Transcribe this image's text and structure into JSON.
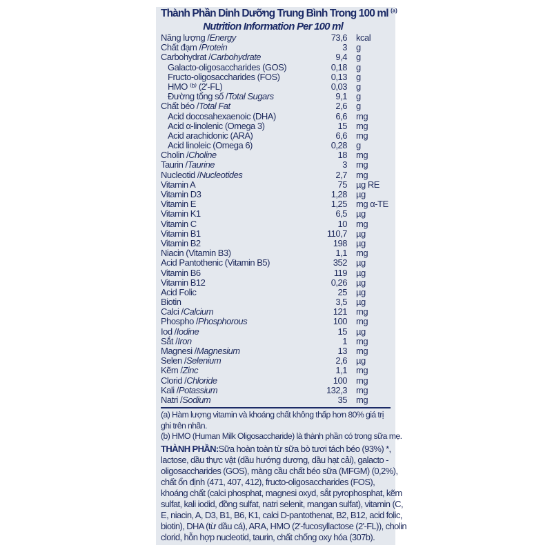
{
  "header": {
    "title_vi": "Thành Phần Dinh Dưỡng Trung Bình Trong 100 ml",
    "title_note": "(a)",
    "title_en": "Nutrition Information Per 100 ml"
  },
  "rows": [
    {
      "vi": "Năng lượng / ",
      "en": "Energy",
      "value": "73,6",
      "unit": "kcal",
      "sub": false
    },
    {
      "vi": "Chất đạm / ",
      "en": "Protein",
      "value": "3",
      "unit": "g",
      "sub": false
    },
    {
      "vi": "Carbohydrat / ",
      "en": "Carbohydrate",
      "value": "9,4",
      "unit": "g",
      "sub": false
    },
    {
      "vi": "Galacto-oligosaccharides (GOS)",
      "en": "",
      "value": "0,18",
      "unit": "g",
      "sub": true
    },
    {
      "vi": "Fructo-oligosaccharides (FOS)",
      "en": "",
      "value": "0,13",
      "unit": "g",
      "sub": true
    },
    {
      "vi": "HMO ⁽ᵇ⁾ (2'-FL)",
      "en": "",
      "value": "0,03",
      "unit": "g",
      "sub": true
    },
    {
      "vi": "Đường tổng số / ",
      "en": "Total Sugars",
      "value": "9,1",
      "unit": "g",
      "sub": true
    },
    {
      "vi": "Chất béo / ",
      "en": "Total Fat",
      "value": "2,6",
      "unit": "g",
      "sub": false
    },
    {
      "vi": "Acid docosahexaenoic (DHA)",
      "en": "",
      "value": "6,6",
      "unit": "mg",
      "sub": true
    },
    {
      "vi": "Acid α-linolenic (Omega 3)",
      "en": "",
      "value": "15",
      "unit": "mg",
      "sub": true
    },
    {
      "vi": "Acid arachidonic (ARA)",
      "en": "",
      "value": "6,6",
      "unit": "mg",
      "sub": true
    },
    {
      "vi": "Acid linoleic (Omega 6)",
      "en": "",
      "value": "0,28",
      "unit": "g",
      "sub": true
    },
    {
      "vi": "Cholin / ",
      "en": "Choline",
      "value": "18",
      "unit": "mg",
      "sub": false
    },
    {
      "vi": "Taurin / ",
      "en": "Taurine",
      "value": "3",
      "unit": "mg",
      "sub": false
    },
    {
      "vi": "Nucleotid / ",
      "en": "Nucleotides",
      "value": "2,7",
      "unit": "mg",
      "sub": false
    },
    {
      "vi": "Vitamin A",
      "en": "",
      "value": "75",
      "unit": "µg RE",
      "sub": false
    },
    {
      "vi": "Vitamin D3",
      "en": "",
      "value": "1,28",
      "unit": "µg",
      "sub": false
    },
    {
      "vi": "Vitamin E",
      "en": "",
      "value": "1,25",
      "unit": "mg α-TE",
      "sub": false
    },
    {
      "vi": "Vitamin K1",
      "en": "",
      "value": "6,5",
      "unit": "µg",
      "sub": false
    },
    {
      "vi": "Vitamin C",
      "en": "",
      "value": "10",
      "unit": "mg",
      "sub": false
    },
    {
      "vi": "Vitamin B1",
      "en": "",
      "value": "110,7",
      "unit": "µg",
      "sub": false
    },
    {
      "vi": "Vitamin B2",
      "en": "",
      "value": "198",
      "unit": "µg",
      "sub": false
    },
    {
      "vi": "Niacin (Vitamin B3)",
      "en": "",
      "value": "1,1",
      "unit": "mg",
      "sub": false
    },
    {
      "vi": "Acid Pantothenic (Vitamin B5)",
      "en": "",
      "value": "352",
      "unit": "µg",
      "sub": false
    },
    {
      "vi": "Vitamin B6",
      "en": "",
      "value": "119",
      "unit": "µg",
      "sub": false
    },
    {
      "vi": "Vitamin B12",
      "en": "",
      "value": "0,26",
      "unit": "µg",
      "sub": false
    },
    {
      "vi": "Acid Folic",
      "en": "",
      "value": "25",
      "unit": "µg",
      "sub": false
    },
    {
      "vi": "Biotin",
      "en": "",
      "value": "3,5",
      "unit": "µg",
      "sub": false
    },
    {
      "vi": "Calci / ",
      "en": "Calcium",
      "value": "121",
      "unit": "mg",
      "sub": false
    },
    {
      "vi": "Phospho / ",
      "en": "Phosphorous",
      "value": "100",
      "unit": "mg",
      "sub": false
    },
    {
      "vi": "Iod / ",
      "en": "Iodine",
      "value": "15",
      "unit": "µg",
      "sub": false
    },
    {
      "vi": "Sắt / ",
      "en": "Iron",
      "value": "1",
      "unit": "mg",
      "sub": false
    },
    {
      "vi": "Magnesi / ",
      "en": "Magnesium",
      "value": "13",
      "unit": "mg",
      "sub": false
    },
    {
      "vi": "Selen / ",
      "en": "Selenium",
      "value": "2,6",
      "unit": "µg",
      "sub": false
    },
    {
      "vi": "Kẽm / ",
      "en": "Zinc",
      "value": "1,1",
      "unit": "mg",
      "sub": false
    },
    {
      "vi": "Clorid / ",
      "en": "Chloride",
      "value": "100",
      "unit": "mg",
      "sub": false
    },
    {
      "vi": "Kali / ",
      "en": "Potassium",
      "value": "132,3",
      "unit": "mg",
      "sub": false
    },
    {
      "vi": "Natri / ",
      "en": "Sodium",
      "value": "35",
      "unit": "mg",
      "sub": false
    }
  ],
  "notes": [
    "(a) Hàm lượng vitamin và khoáng chất không thấp hơn 80% giá trị",
    "ghi trên nhãn.",
    "(b) HMO (Human Milk Oligosaccharide) là thành phần có trong sữa mẹ."
  ],
  "ingredients": {
    "label": "THÀNH PHẦN:",
    "lines": [
      " Sữa hoàn toàn từ sữa bò tươi tách béo (93%) *,",
      "lactose, dầu thực vật (dầu hướng dương, dầu hạt cải), galacto -",
      "oligosaccharides (GOS), màng cầu chất béo sữa (MFGM) (0,2%),",
      "chất ổn định (471, 407, 412), fructo-oligosaccharides (FOS),",
      "khoáng chất (calci phosphat, magnesi oxyd, sắt pyrophosphat, kẽm",
      "sulfat, kali iodid, đồng sulfat, natri selenit, mangan sulfat), vitamin (C,",
      "E, niacin, A, D3, B1, B6, K1, calci D-pantothenat, B2, B12, acid folic,",
      "biotin), DHA (từ dầu cá), ARA, HMO (2'-fucosyllactose (2'-FL)), cholin",
      "clorid, hỗn hợp nucleotid, taurin, chất chống oxy hóa (307b)."
    ]
  },
  "colors": {
    "text": "#1e2a5c",
    "panel": "#e4e8ee"
  }
}
